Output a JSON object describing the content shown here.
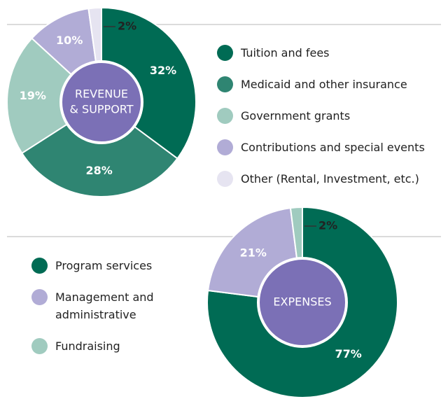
{
  "chart_data": [
    {
      "type": "pie",
      "title_lines": [
        "REVENUE",
        "& SUPPORT"
      ],
      "categories": [
        "Tuition and fees",
        "Medicaid and other insurance",
        "Government grants",
        "Contributions and special events",
        "Other (Rental, Investment, etc.)"
      ],
      "values": [
        32,
        28,
        19,
        10,
        2
      ],
      "value_labels": [
        "32%",
        "28%",
        "19%",
        "10%",
        "2%"
      ],
      "colors": [
        "#006b54",
        "#2f8572",
        "#a0cbbf",
        "#b1acd6",
        "#e6e4f1"
      ],
      "legend_position": "right"
    },
    {
      "type": "pie",
      "title_lines": [
        "EXPENSES"
      ],
      "categories": [
        "Program services",
        "Management and administrative",
        "Fundraising"
      ],
      "values": [
        77,
        21,
        2
      ],
      "value_labels": [
        "77%",
        "21%",
        "2%"
      ],
      "colors": [
        "#006b54",
        "#b1acd6",
        "#a0cbbf"
      ],
      "legend_position": "left"
    }
  ]
}
